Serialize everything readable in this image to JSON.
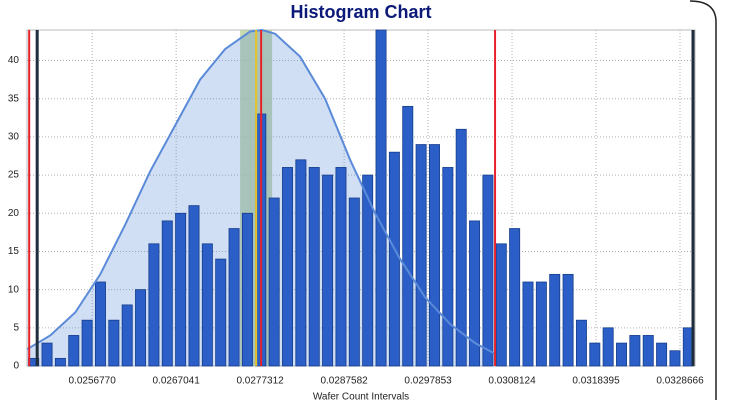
{
  "chart_data": {
    "type": "histogram",
    "title": "Histogram Chart",
    "x_label": "Wafer Count Intervals",
    "bins": [
      0.02488,
      0.0250434,
      0.0252068,
      0.0253702,
      0.0255336,
      0.025697,
      0.0258604,
      0.0260238,
      0.0261872,
      0.0263506,
      0.026514,
      0.0266774,
      0.0268408,
      0.0270042,
      0.0271676,
      0.027331,
      0.0274944,
      0.0276578,
      0.0278212,
      0.0279846,
      0.028148,
      0.0283114,
      0.0284748,
      0.0286382,
      0.0288016,
      0.028965,
      0.0291284,
      0.0292918,
      0.0294552,
      0.0296186,
      0.029782,
      0.0299454,
      0.0301088,
      0.0302722,
      0.0304356,
      0.030599,
      0.0307624,
      0.0309258,
      0.0310892,
      0.0312526,
      0.031416,
      0.0315794,
      0.0317428,
      0.0319062,
      0.0320696,
      0.032233,
      0.0323964,
      0.0325598,
      0.0327232,
      0.0328866,
      0.03305
    ],
    "values": [
      1,
      3,
      1,
      4,
      6,
      11,
      6,
      8,
      10,
      16,
      19,
      20,
      21,
      16,
      14,
      18,
      20,
      33,
      22,
      26,
      27,
      26,
      25,
      26,
      22,
      25,
      44,
      28,
      34,
      29,
      29,
      26,
      31,
      19,
      25,
      16,
      18,
      11,
      11,
      12,
      12,
      6,
      3,
      5,
      3,
      4,
      4,
      3,
      2,
      5
    ],
    "color": "#2b5fc7",
    "curve": {
      "color": "#5b8bd8",
      "x": [
        0.0248822,
        0.0251635,
        0.0254691,
        0.0257748,
        0.0260805,
        0.0263862,
        0.0266918,
        0.0269975,
        0.0273032,
        0.0276089,
        0.0277556,
        0.0279145,
        0.0282202,
        0.0285259,
        0.0288316,
        0.0291372,
        0.0294429,
        0.0297486,
        0.0300543,
        0.0303599,
        0.0306045
      ],
      "values": [
        2.2,
        4,
        7,
        12,
        18.5,
        25.5,
        31.5,
        37.5,
        41.5,
        43.8,
        44,
        43.5,
        40.5,
        35,
        27,
        20,
        14,
        9,
        5.5,
        3,
        1.6
      ]
    },
    "band": {
      "x": [
        0.0274867,
        0.0278779
      ],
      "color": "#b9cf9a"
    },
    "reference_lines": [
      {
        "x": 0.0249067,
        "color": "#e8202a"
      },
      {
        "x": 0.0250045,
        "color": "#1f2d3d"
      },
      {
        "x": 0.0276823,
        "color": "#e6c229"
      },
      {
        "x": 0.0277434,
        "color": "#e8202a"
      },
      {
        "x": 0.0306046,
        "color": "#e8202a"
      },
      {
        "x": 0.0330255,
        "color": "#1f2d3d"
      }
    ],
    "xlim": [
      0.02488,
      0.03305
    ],
    "xticks": [
      {
        "value": 0.025677,
        "label": "0.0256770"
      },
      0.0267041,
      0.0277312,
      0.0287582,
      0.0297853,
      0.0308124,
      0.0318395,
      0.0328666
    ],
    "ylim": [
      0,
      44
    ],
    "yticks": [
      0,
      5,
      10,
      15,
      20,
      25,
      30,
      35,
      40
    ],
    "grid": true
  }
}
